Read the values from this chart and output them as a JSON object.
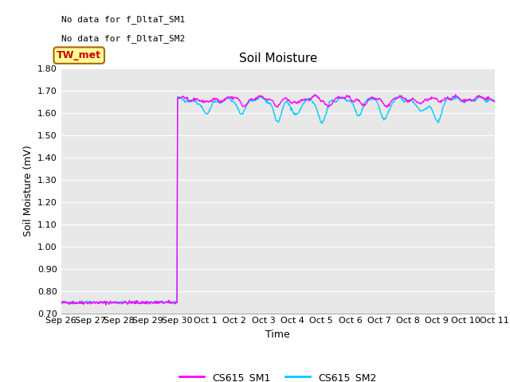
{
  "title": "Soil Moisture",
  "ylabel": "Soil Moisture (mV)",
  "xlabel": "Time",
  "ylim": [
    0.7,
    1.8
  ],
  "yticks": [
    0.7,
    0.8,
    0.9,
    1.0,
    1.1,
    1.2,
    1.3,
    1.4,
    1.5,
    1.6,
    1.7,
    1.8
  ],
  "xtick_labels": [
    "Sep 26",
    "Sep 27",
    "Sep 28",
    "Sep 29",
    "Sep 30",
    "Oct 1",
    "Oct 2",
    "Oct 3",
    "Oct 4",
    "Oct 5",
    "Oct 6",
    "Oct 7",
    "Oct 8",
    "Oct 9",
    "Oct 10",
    "Oct 11"
  ],
  "no_data_text_1": "No data for f_DltaT_SM1",
  "no_data_text_2": "No data for f_DltaT_SM2",
  "tw_met_label": "TW_met",
  "tw_met_bg": "#ffff99",
  "tw_met_border": "#aa6600",
  "tw_met_text_color": "#cc0000",
  "legend_labels": [
    "CS615_SM1",
    "CS615_SM2"
  ],
  "sm1_color": "#ff00ff",
  "sm2_color": "#00ccff",
  "fig_bg_color": "#ffffff",
  "plot_bg_color": "#e8e8e8",
  "grid_color": "#d8d8d8",
  "line_width": 1.0,
  "title_fontsize": 11,
  "label_fontsize": 9,
  "tick_fontsize": 8,
  "nodata_fontsize": 8,
  "legend_fontsize": 9
}
